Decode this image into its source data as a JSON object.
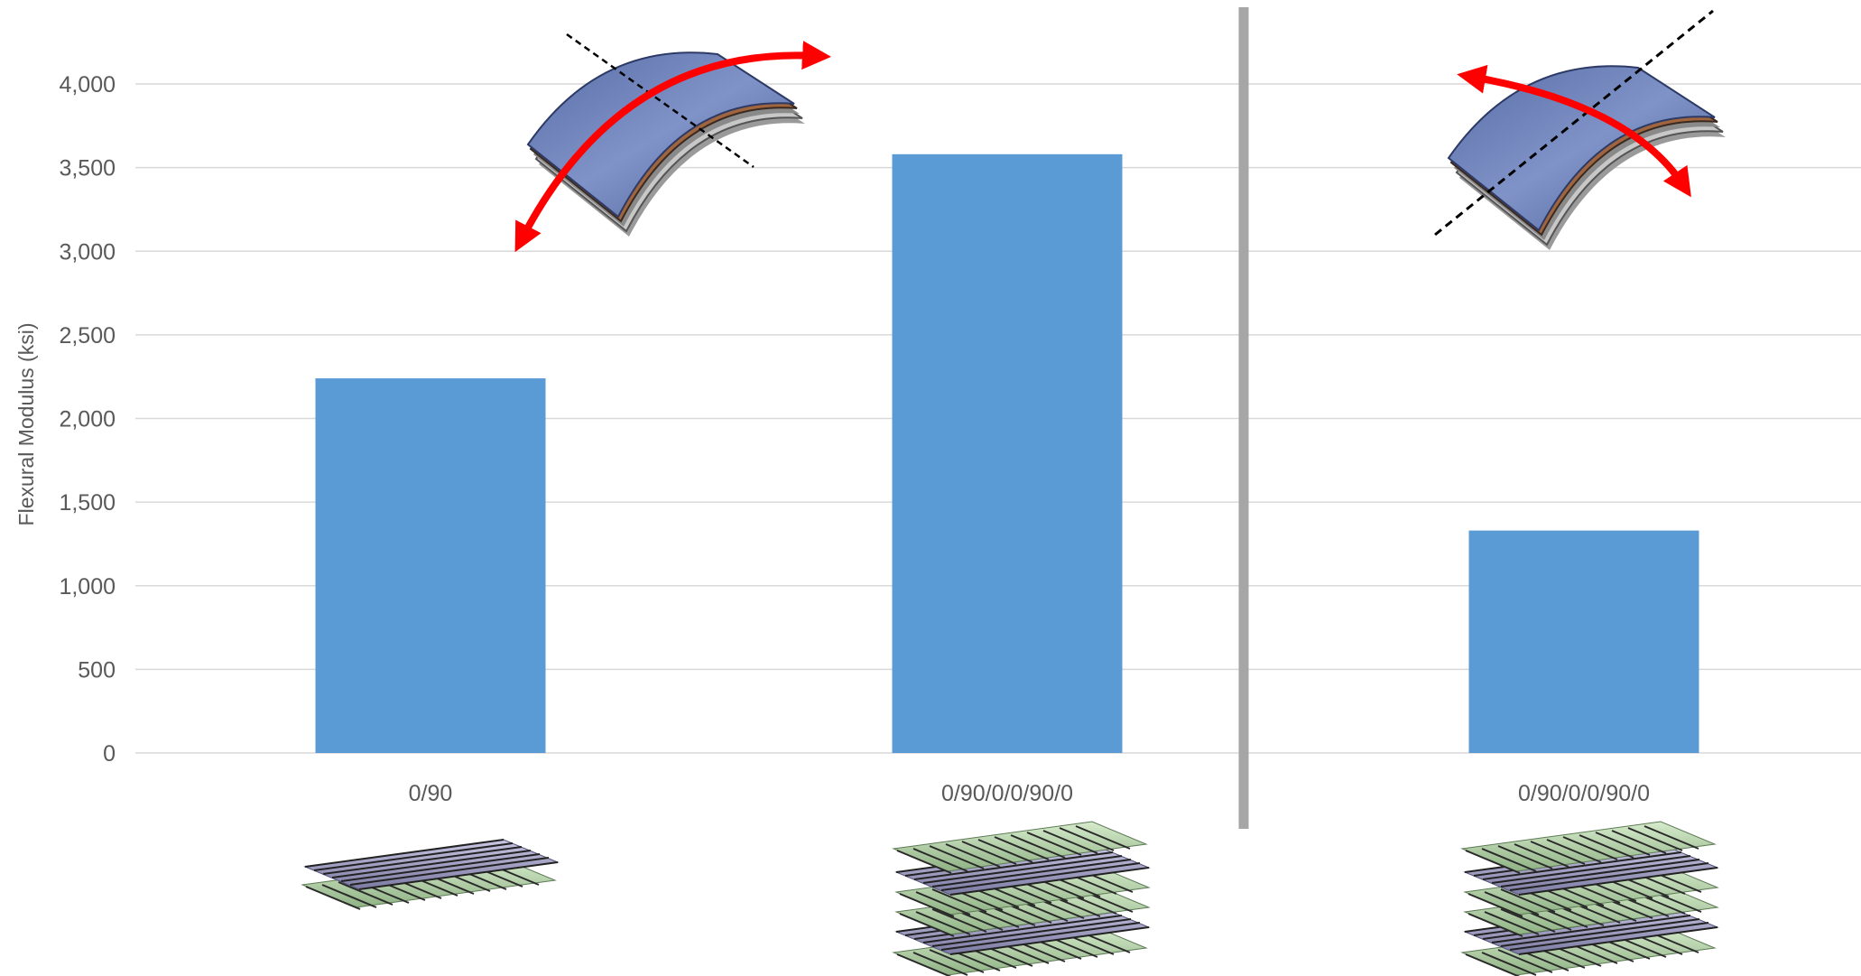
{
  "chart_data": {
    "type": "bar",
    "categories": [
      "0/90",
      "0/90/0/0/90/0",
      "0/90/0/0/90/0"
    ],
    "values": [
      2240,
      3580,
      1330
    ],
    "ylabel": "Flexural  Modulus (ksi)",
    "ylim": [
      0,
      4000
    ],
    "yticks": [
      0,
      500,
      1000,
      1500,
      2000,
      2500,
      3000,
      3500,
      4000
    ],
    "ytick_labels": [
      "0",
      "500",
      "1,000",
      "1,500",
      "2,000",
      "2,500",
      "3,000",
      "3,500",
      "4,000"
    ],
    "grid": true,
    "bar_color": "#5b9bd5",
    "divider_color": "#a6a6a6",
    "arrow_color": "#ff0000",
    "icons": [
      "curved-laminate-bend-across-icon",
      "curved-laminate-bend-along-icon",
      "two-ply-layup-icon",
      "six-ply-layup-icon",
      "six-ply-layup-icon"
    ]
  }
}
